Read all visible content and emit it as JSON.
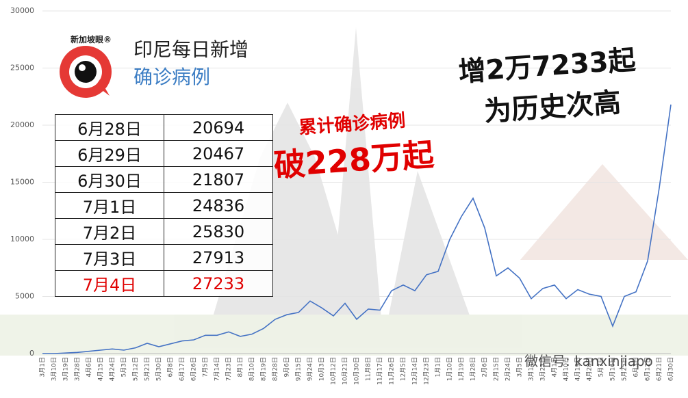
{
  "chart_data": {
    "type": "line",
    "color": "#4472c4",
    "grid": true,
    "ylim": [
      0,
      30000
    ],
    "yticks": [
      0,
      5000,
      10000,
      15000,
      20000,
      25000,
      30000
    ],
    "categories": [
      "3月1日",
      "3月10日",
      "3月19日",
      "3月28日",
      "4月6日",
      "4月15日",
      "4月24日",
      "5月3日",
      "5月12日",
      "5月21日",
      "5月30日",
      "6月8日",
      "6月17日",
      "6月26日",
      "7月5日",
      "7月14日",
      "7月23日",
      "8月1日",
      "8月10日",
      "8月19日",
      "8月28日",
      "9月6日",
      "9月15日",
      "9月24日",
      "10月3日",
      "10月12日",
      "10月21日",
      "10月30日",
      "11月8日",
      "11月17日",
      "11月26日",
      "12月5日",
      "12月14日",
      "12月23日",
      "1月1日",
      "1月10日",
      "1月19日",
      "1月28日",
      "2月6日",
      "2月15日",
      "2月24日",
      "3月5日",
      "3月14日",
      "3月23日",
      "4月1日",
      "4月10日",
      "4月19日",
      "4月28日",
      "5月7日",
      "5月16日",
      "5月25日",
      "6月3日",
      "6月12日",
      "6月21日",
      "6月30日"
    ],
    "values": [
      0,
      0,
      50,
      100,
      200,
      300,
      400,
      300,
      500,
      900,
      600,
      850,
      1100,
      1200,
      1600,
      1600,
      1900,
      1500,
      1700,
      2200,
      3000,
      3400,
      3600,
      4600,
      4000,
      3300,
      4400,
      3000,
      3900,
      3800,
      5500,
      6000,
      5500,
      6900,
      7200,
      10000,
      12000,
      13600,
      11000,
      6800,
      7500,
      6600,
      4800,
      5700,
      6000,
      4800,
      5600,
      5200,
      5000,
      2400,
      5000,
      5400,
      8100,
      14500,
      21800
    ]
  },
  "overlay": {
    "logo": "新加坡眼®",
    "heading_1": "印尼每日新增",
    "heading_2": "确诊病例",
    "total_1": "累计确诊病例",
    "total_2": "破228万起",
    "record_1": "增2万7233起",
    "record_2": "为历史次高",
    "watermark": "微信号: kanxinjiapo"
  },
  "table": {
    "rows": [
      [
        "6月28日",
        "20694"
      ],
      [
        "6月29日",
        "20467"
      ],
      [
        "6月30日",
        "21807"
      ],
      [
        "7月1日",
        "24836"
      ],
      [
        "7月2日",
        "25830"
      ],
      [
        "7月3日",
        "27913"
      ],
      [
        "7月4日",
        "27233"
      ]
    ]
  }
}
